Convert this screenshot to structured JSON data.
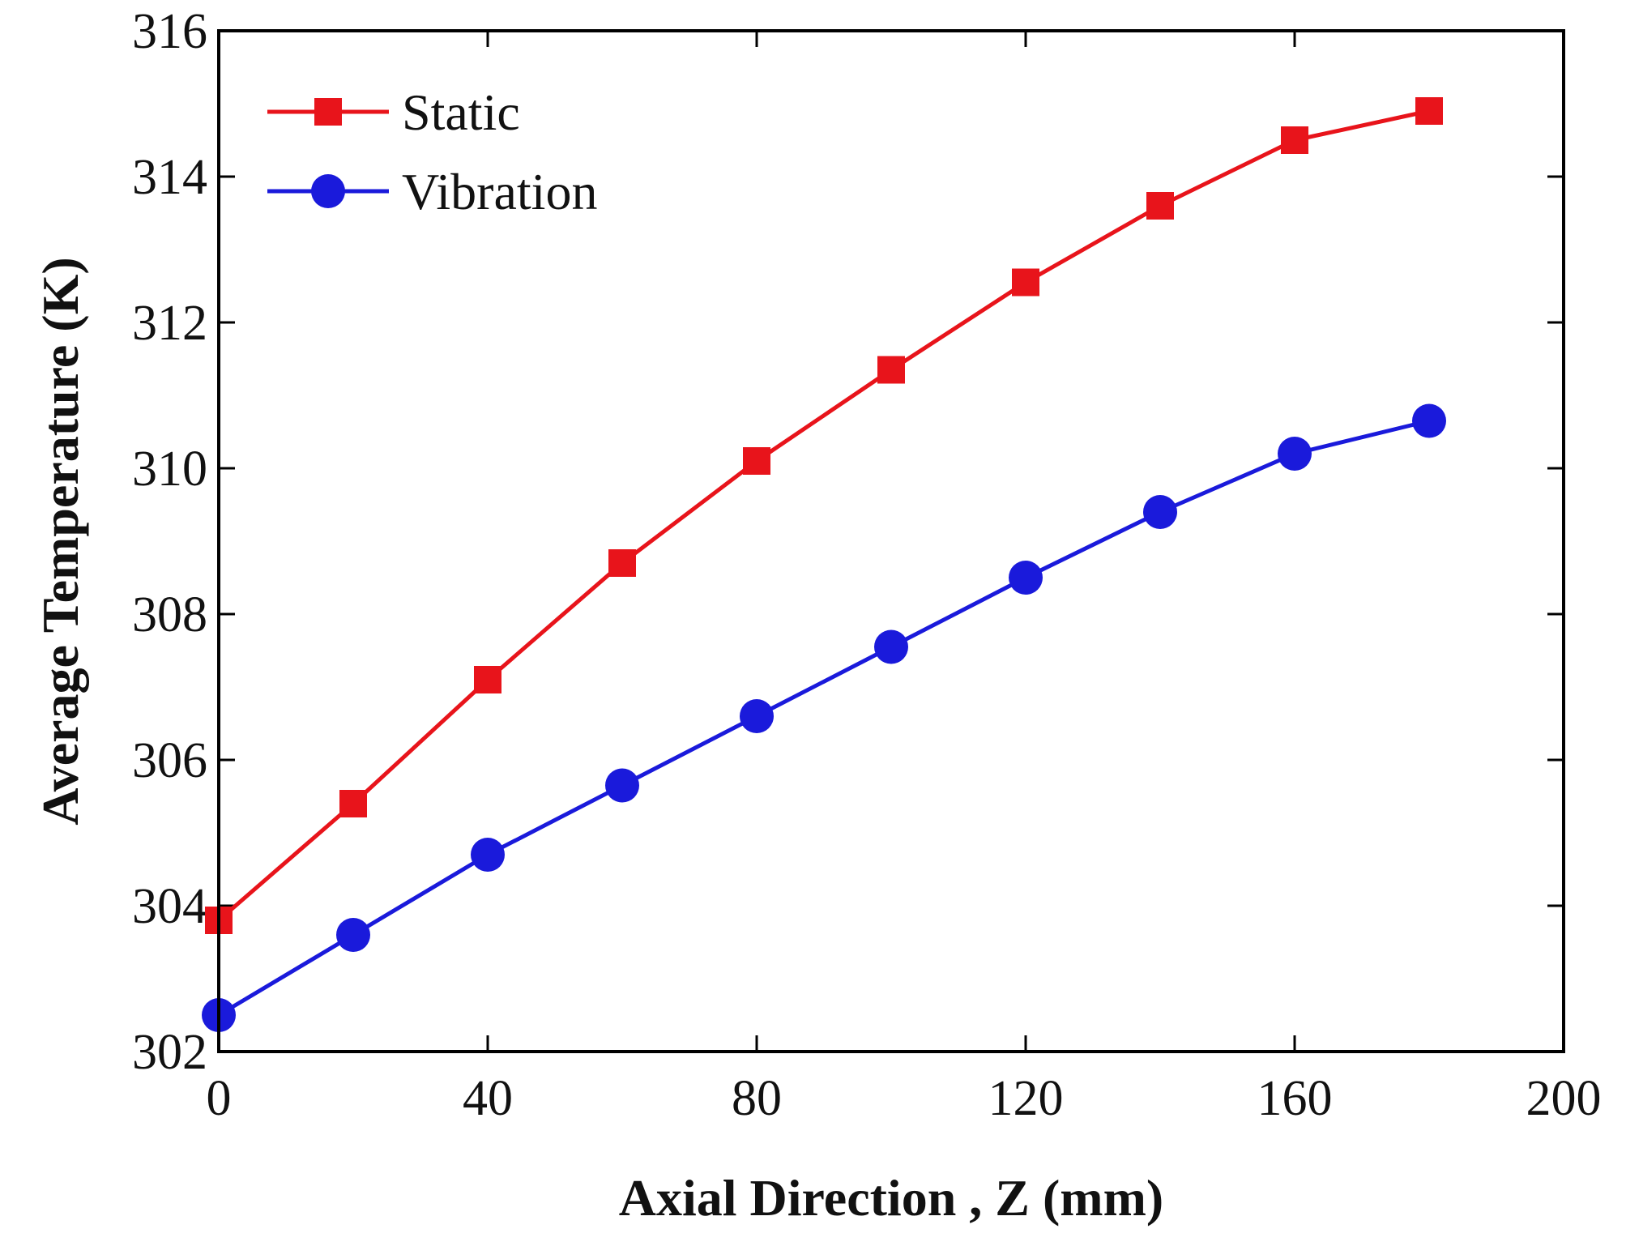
{
  "chart_data": {
    "type": "line",
    "title": "",
    "xlabel": "Axial Direction , Z (mm)",
    "ylabel": "Average Temperature (K)",
    "xlim": [
      0,
      200
    ],
    "ylim": [
      302,
      316
    ],
    "xticks": [
      0,
      40,
      80,
      120,
      160,
      200
    ],
    "yticks": [
      302,
      304,
      306,
      308,
      310,
      312,
      314,
      316
    ],
    "grid": false,
    "legend_position": "top-left",
    "x": [
      0,
      20,
      40,
      60,
      80,
      100,
      120,
      140,
      160,
      180
    ],
    "series": [
      {
        "name": "Static",
        "color": "#e8141b",
        "marker": "square",
        "values": [
          303.8,
          305.4,
          307.1,
          308.7,
          310.1,
          311.35,
          312.55,
          313.6,
          314.5,
          314.9
        ]
      },
      {
        "name": "Vibration",
        "color": "#1a1adb",
        "marker": "circle",
        "values": [
          302.5,
          303.6,
          304.7,
          305.65,
          306.6,
          307.55,
          308.5,
          309.4,
          310.2,
          310.65
        ]
      }
    ]
  }
}
